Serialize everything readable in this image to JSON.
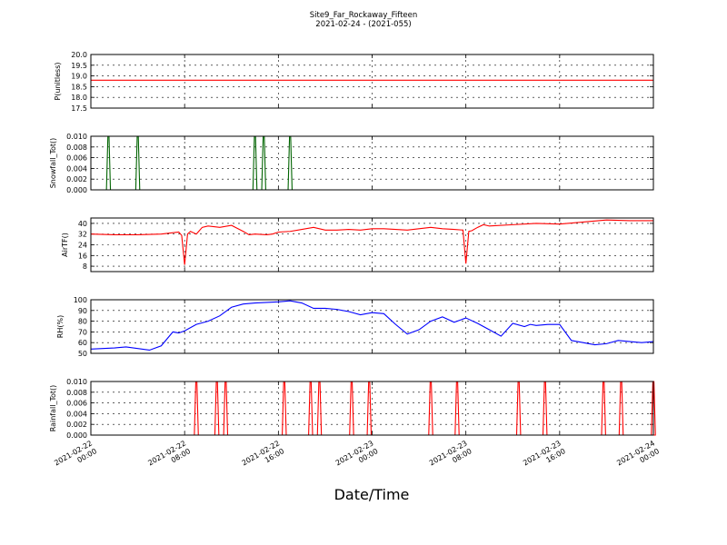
{
  "title": "Site9_Far_Rockaway_Fifteen",
  "subtitle": "2021-02-24 - (2021-055)",
  "xlabel": "Date/Time",
  "x_ticks": [
    "2021-02-22\n00:00",
    "2021-02-22\n08:00",
    "2021-02-22\n16:00",
    "2021-02-23\n00:00",
    "2021-02-23\n08:00",
    "2021-02-23\n16:00",
    "2021-02-24\n00:00"
  ],
  "colors": {
    "pressure": "#ff0000",
    "snowfall": "#006400",
    "airtemp": "#ff0000",
    "rh": "#0000ff",
    "rainfall": "#ff0000"
  },
  "chart_data": [
    {
      "type": "line",
      "ylabel": "P(unitless)",
      "ylim": [
        17.5,
        20.0
      ],
      "yticks": [
        "17.5",
        "18.0",
        "18.5",
        "19.0",
        "19.5",
        "20.0"
      ],
      "grid": true,
      "series": [
        {
          "x_hours": [
            0,
            48
          ],
          "y": [
            18.8,
            18.8
          ]
        }
      ]
    },
    {
      "type": "line",
      "ylabel": "Snowfall_Tot()",
      "ylim": [
        0,
        0.01
      ],
      "yticks": [
        "0.000",
        "0.002",
        "0.004",
        "0.006",
        "0.008",
        "0.010"
      ],
      "grid": true,
      "spikes_x_hours": [
        1.5,
        4.0,
        14.0,
        14.75,
        17.0
      ],
      "spike_value": 0.01
    },
    {
      "type": "line",
      "ylabel": "AirTF()",
      "ylim": [
        4,
        44
      ],
      "yticks": [
        "8",
        "16",
        "24",
        "32",
        "40"
      ],
      "grid": true,
      "series": [
        {
          "x_hours": [
            0,
            2,
            4,
            6,
            7.5,
            7.75,
            8.0,
            8.25,
            8.5,
            9.0,
            9.5,
            10,
            11,
            12,
            13,
            13.5,
            14,
            15,
            15.5,
            16,
            17,
            18,
            19,
            20,
            21,
            22,
            23,
            24,
            25,
            26,
            27,
            28,
            29,
            30,
            31,
            31.75,
            32.0,
            32.25,
            32.5,
            33,
            33.5,
            34,
            36,
            38,
            40,
            42,
            44,
            46,
            48
          ],
          "y": [
            32,
            31.5,
            31.5,
            32,
            33.5,
            31,
            9,
            32,
            34,
            32,
            37,
            38,
            37,
            38.5,
            34,
            31.5,
            32,
            31.5,
            32,
            33.5,
            34,
            35.5,
            37,
            35,
            35,
            35.5,
            35,
            36,
            36,
            35.5,
            35,
            36,
            37,
            36,
            35.5,
            35,
            10,
            34,
            34.5,
            37,
            39,
            38,
            39,
            40,
            39.5,
            41,
            42.5,
            42,
            42
          ]
        }
      ]
    },
    {
      "type": "line",
      "ylabel": "RH(%)",
      "ylim": [
        50,
        100
      ],
      "yticks": [
        "50",
        "60",
        "70",
        "80",
        "90",
        "100"
      ],
      "grid": true,
      "series": [
        {
          "x_hours": [
            0,
            2,
            3,
            5,
            6,
            7,
            7.5,
            8,
            9,
            10,
            11,
            12,
            13,
            14,
            15,
            16,
            17,
            18,
            19,
            20,
            21,
            22,
            23,
            24,
            25,
            26,
            27,
            28,
            29,
            30,
            31,
            32,
            33,
            34,
            35,
            36,
            37,
            37.5,
            38,
            39,
            40,
            41,
            42,
            43,
            44,
            45,
            46,
            47,
            48
          ],
          "y": [
            54,
            55,
            56,
            53,
            57,
            70,
            69,
            71,
            77,
            80,
            85,
            93,
            96,
            97,
            97.5,
            98,
            99,
            97,
            92,
            92,
            91,
            89,
            86,
            88,
            87,
            77,
            68,
            72,
            80,
            84,
            79,
            83,
            78,
            72,
            66,
            78,
            75,
            77,
            76,
            77,
            77,
            62,
            60,
            58,
            59,
            62,
            61,
            60,
            61
          ]
        }
      ]
    },
    {
      "type": "line",
      "ylabel": "Rainfall_Tot()",
      "ylim": [
        0,
        0.01
      ],
      "yticks": [
        "0.000",
        "0.002",
        "0.004",
        "0.006",
        "0.008",
        "0.010"
      ],
      "grid": true,
      "spikes_x_hours": [
        9.0,
        10.75,
        11.5,
        16.5,
        18.75,
        19.5,
        22.25,
        23.75,
        29.0,
        31.25,
        36.5,
        38.75,
        43.75,
        45.25,
        48.0
      ],
      "spike_value": 0.01
    }
  ]
}
